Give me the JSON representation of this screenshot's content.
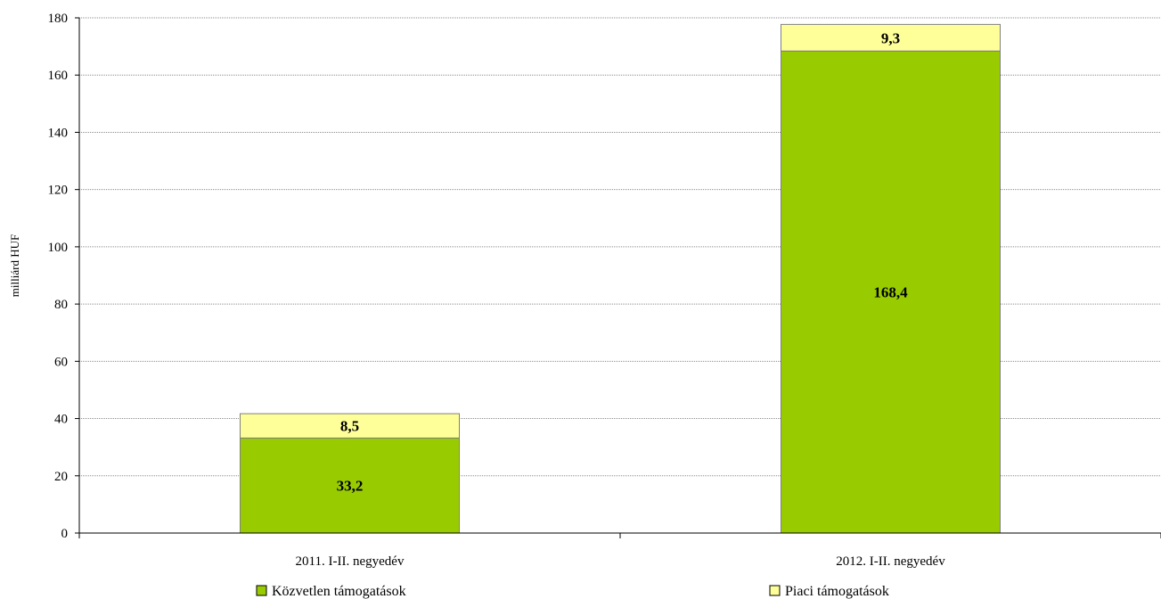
{
  "chart_data": {
    "type": "bar",
    "stacked": true,
    "categories": [
      "2011. I-II. negyedév",
      "2012. I-II. negyedév"
    ],
    "series": [
      {
        "name": "Közvetlen támogatások",
        "values": [
          33.2,
          168.4
        ],
        "labels": [
          "33,2",
          "168,4"
        ],
        "color": "#99cc00"
      },
      {
        "name": "Piaci támogatások",
        "values": [
          8.5,
          9.3
        ],
        "labels": [
          "8,5",
          "9,3"
        ],
        "color": "#ffff99"
      }
    ],
    "ylabel": "milliárd HUF",
    "ylim": [
      0,
      180
    ],
    "yticks": [
      0,
      20,
      40,
      60,
      80,
      100,
      120,
      140,
      160,
      180
    ],
    "grid": true,
    "legend_position": "bottom"
  }
}
